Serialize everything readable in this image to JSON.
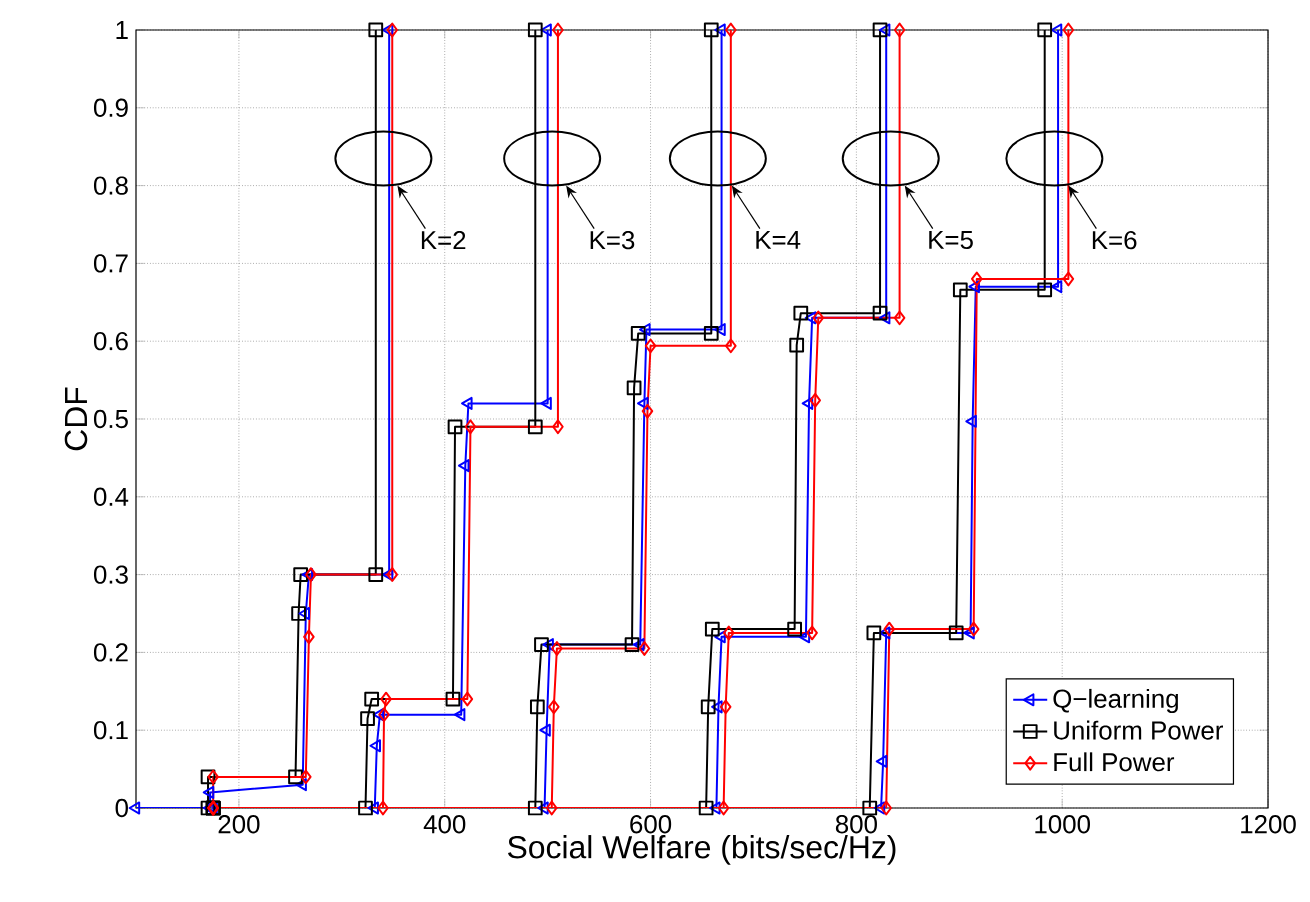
{
  "chart_data": {
    "type": "step",
    "xlabel": "Social Welfare (bits/sec/Hz)",
    "ylabel": "CDF",
    "xlim": [
      100,
      1200
    ],
    "ylim": [
      0,
      1
    ],
    "xticks": [
      200,
      400,
      600,
      800,
      1000,
      1200
    ],
    "yticks": [
      0,
      0.1,
      0.2,
      0.3,
      0.4,
      0.5,
      0.6,
      0.7,
      0.8,
      0.9,
      1
    ],
    "grid": true,
    "legend": "bottom right",
    "line_style": "solid",
    "series": [
      {
        "name": "Q−learning",
        "color": "#0000ff",
        "marker": "triangle",
        "x": [
          100,
          172,
          172,
          262,
          265,
          268,
          346,
          346,
          null,
          175,
          332,
          334,
          337,
          416,
          420,
          423,
          500,
          500,
          null,
          175,
          497,
          499,
          502,
          590,
          594,
          596,
          669,
          669,
          null,
          175,
          664,
          666,
          669,
          751,
          754,
          757,
          829,
          829,
          null,
          175,
          824,
          826,
          829,
          911,
          913,
          916,
          996,
          996
        ],
        "values": [
          0,
          0,
          0.02,
          0.03,
          0.25,
          0.3,
          0.3,
          1,
          null,
          0,
          0,
          0.08,
          0.12,
          0.12,
          0.44,
          0.52,
          0.52,
          1,
          null,
          0,
          0,
          0.1,
          0.21,
          0.21,
          0.52,
          0.615,
          0.615,
          1,
          null,
          0,
          0,
          0.13,
          0.22,
          0.22,
          0.52,
          0.63,
          0.63,
          1,
          null,
          0,
          0,
          0.06,
          0.225,
          0.225,
          0.497,
          0.67,
          0.67,
          1
        ]
      },
      {
        "name": "Uniform Power",
        "color": "#000000",
        "marker": "square",
        "x": [
          170,
          170,
          255,
          258,
          260,
          333,
          333,
          null,
          175,
          323,
          325,
          329,
          408,
          410,
          488,
          488,
          null,
          175,
          488,
          490,
          494,
          582,
          584,
          588,
          659,
          659,
          null,
          175,
          654,
          656,
          660,
          740,
          742,
          746,
          823,
          823,
          null,
          175,
          813,
          817,
          897,
          901,
          983,
          983
        ],
        "values": [
          0,
          0.04,
          0.04,
          0.25,
          0.3,
          0.3,
          1,
          null,
          0,
          0,
          0.115,
          0.14,
          0.14,
          0.49,
          0.49,
          1,
          null,
          0,
          0,
          0.13,
          0.21,
          0.21,
          0.54,
          0.61,
          0.61,
          1,
          null,
          0,
          0,
          0.13,
          0.23,
          0.23,
          0.595,
          0.636,
          0.636,
          1,
          null,
          0,
          0,
          0.225,
          0.225,
          0.666,
          0.666,
          1
        ]
      },
      {
        "name": "Full Power",
        "color": "#ff0000",
        "marker": "diamond",
        "x": [
          175,
          175,
          265,
          268,
          270,
          349,
          349,
          null,
          175,
          340,
          341,
          343,
          422,
          425,
          510,
          510,
          null,
          175,
          504,
          506,
          509,
          594,
          597,
          600,
          678,
          678,
          null,
          175,
          671,
          673,
          676,
          757,
          760,
          763,
          842,
          842,
          null,
          175,
          829,
          832,
          914,
          917,
          1006,
          1006
        ],
        "values": [
          0,
          0.04,
          0.04,
          0.22,
          0.3,
          0.3,
          1,
          null,
          0,
          0,
          0.12,
          0.14,
          0.14,
          0.49,
          0.49,
          1,
          null,
          0,
          0,
          0.13,
          0.205,
          0.205,
          0.51,
          0.594,
          0.594,
          1,
          null,
          0,
          0,
          0.13,
          0.225,
          0.225,
          0.524,
          0.63,
          0.63,
          1,
          null,
          0,
          0,
          0.23,
          0.23,
          0.68,
          0.68,
          1
        ]
      }
    ],
    "annotations": [
      {
        "text": "K=2",
        "x": 354,
        "y": 0.8
      },
      {
        "text": "K=3",
        "x": 518,
        "y": 0.8
      },
      {
        "text": "K=4",
        "x": 679,
        "y": 0.8
      },
      {
        "text": "K=5",
        "x": 847,
        "y": 0.8
      },
      {
        "text": "K=6",
        "x": 1006,
        "y": 0.8
      }
    ]
  }
}
